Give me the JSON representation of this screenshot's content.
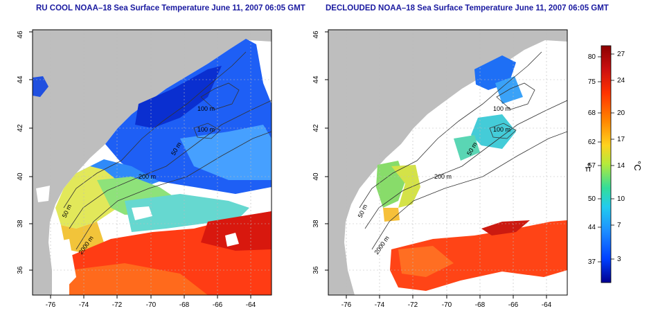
{
  "panels": [
    {
      "title": "RU COOL NOAA–18 Sea Surface Temperature June 11, 2007 06:05 GMT"
    },
    {
      "title": "DECLOUDED NOAA–18 Sea Surface Temperature June 11, 2007 06:05 GMT"
    }
  ],
  "map": {
    "lon_ticks": [
      "-76",
      "-74",
      "-72",
      "-70",
      "-68",
      "-66",
      "-64"
    ],
    "lat_ticks": [
      "36",
      "38",
      "40",
      "42",
      "44",
      "46"
    ],
    "contour_labels": [
      "100 m",
      "100 m",
      "200 m",
      "50 m",
      "50 m",
      "2000 m"
    ],
    "land_color": "#bebebe",
    "grid": true
  },
  "colorbar": {
    "fahrenheit_label": "°F",
    "celsius_label": "°C",
    "fahrenheit_ticks": [
      "80",
      "75",
      "68",
      "62",
      "57",
      "50",
      "44",
      "37"
    ],
    "celsius_ticks": [
      "27",
      "24",
      "20",
      "17",
      "14",
      "10",
      "7",
      "3"
    ],
    "colors": [
      "#8b0000",
      "#cc1010",
      "#ff3300",
      "#ff8800",
      "#ffd21e",
      "#b4ea3c",
      "#33dd99",
      "#22ccee",
      "#1e90ff",
      "#0040ff",
      "#000090"
    ]
  }
}
